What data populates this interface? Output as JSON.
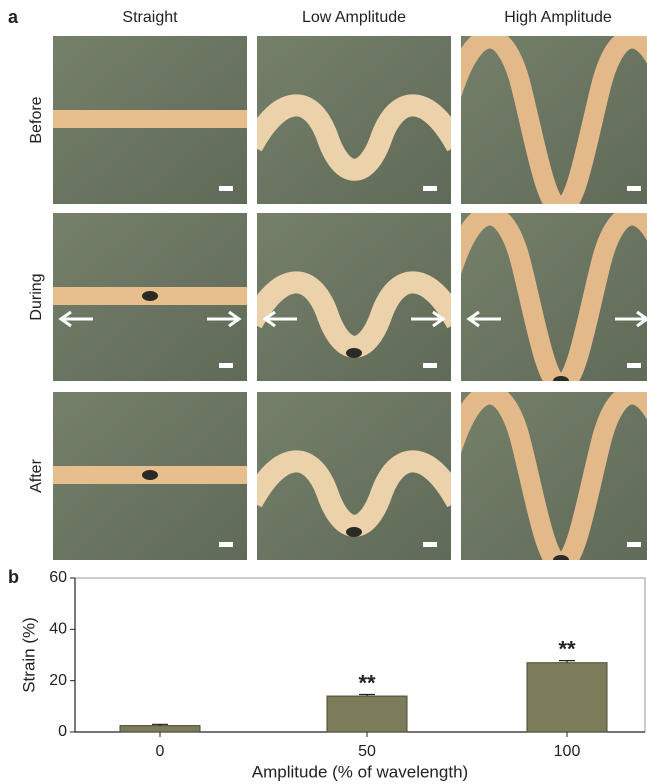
{
  "panel_a": {
    "label": "a",
    "column_headers": [
      "Straight",
      "Low Amplitude",
      "High Amplitude"
    ],
    "row_labels": [
      "Before",
      "During",
      "After"
    ]
  },
  "chart_data": {
    "type": "bar",
    "label": "b",
    "categories": [
      "0",
      "50",
      "100"
    ],
    "values": [
      2.5,
      14,
      27
    ],
    "errors": [
      0.5,
      0.6,
      0.8
    ],
    "color": "#7c7c5a",
    "xlabel": "Amplitude (% of wavelength)",
    "ylabel": "Strain (%)",
    "ylim": [
      0,
      60
    ],
    "yticks": [
      0,
      20,
      40,
      60
    ],
    "annotations": [
      {
        "x": "50",
        "text": "**"
      },
      {
        "x": "100",
        "text": "**"
      }
    ]
  }
}
